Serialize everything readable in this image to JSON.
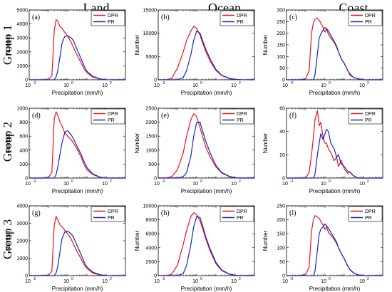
{
  "columns": [
    "Land",
    "Ocean",
    "Coast"
  ],
  "rows": [
    "Group 1",
    "Group 2",
    "Group 3"
  ],
  "colors": {
    "DPR": "#e8141b",
    "PR": "#1a22c8"
  },
  "chart_data": [
    {
      "type": "line",
      "panel": "(a)",
      "xlabel": "Precipitation (mm/h)",
      "ylabel": "Number",
      "xscale": "log",
      "xlim": [
        0.01,
        1000
      ],
      "xticks": [
        "10",
        "10",
        "10"
      ],
      "xtick_exp": [
        "-2",
        "0",
        "2"
      ],
      "ylim": [
        0,
        5000
      ],
      "yticks": [
        "0",
        "1000",
        "2000",
        "3000",
        "4000",
        "5000"
      ],
      "legend": "top-right",
      "x": [
        0.01,
        0.05,
        0.1,
        0.15,
        0.2,
        0.25,
        0.3,
        0.4,
        0.5,
        0.7,
        1,
        1.5,
        2,
        3,
        5,
        7,
        10,
        20,
        50,
        100,
        200,
        1000
      ],
      "series": [
        {
          "name": "DPR",
          "values": [
            0,
            0,
            20,
            300,
            3500,
            4300,
            4200,
            3800,
            3700,
            3400,
            3100,
            2700,
            2300,
            1800,
            1200,
            800,
            500,
            200,
            40,
            10,
            0,
            0
          ]
        },
        {
          "name": "PR",
          "values": [
            0,
            0,
            0,
            0,
            0,
            200,
            600,
            1700,
            2600,
            3100,
            3150,
            3000,
            2800,
            2200,
            1500,
            1000,
            600,
            250,
            50,
            10,
            0,
            0
          ]
        }
      ]
    },
    {
      "type": "line",
      "panel": "(b)",
      "xlabel": "Precipitation (mm/h)",
      "ylabel": "Number",
      "xscale": "log",
      "xlim": [
        0.01,
        1000
      ],
      "xticks": [
        "10",
        "10",
        "10"
      ],
      "xtick_exp": [
        "-2",
        "0",
        "2"
      ],
      "ylim": [
        0,
        15000
      ],
      "yticks": [
        "0",
        "5000",
        "10000",
        "15000"
      ],
      "legend": "top-right",
      "x": [
        0.01,
        0.03,
        0.05,
        0.1,
        0.2,
        0.3,
        0.5,
        0.7,
        1,
        1.5,
        2,
        3,
        5,
        10,
        20,
        50,
        100,
        200,
        1000
      ],
      "series": [
        {
          "name": "DPR",
          "values": [
            0,
            50,
            300,
            2500,
            6000,
            8500,
            10500,
            11500,
            11000,
            9500,
            8000,
            6000,
            4000,
            2000,
            900,
            250,
            60,
            10,
            0
          ]
        },
        {
          "name": "PR",
          "values": [
            0,
            0,
            0,
            0,
            500,
            2000,
            5500,
            8500,
            10500,
            10000,
            8500,
            6500,
            4500,
            2200,
            1000,
            300,
            80,
            10,
            0
          ]
        }
      ]
    },
    {
      "type": "line",
      "panel": "(c)",
      "xlabel": "Precipitation (mm/h)",
      "ylabel": "Number",
      "xscale": "log",
      "xlim": [
        0.01,
        1000
      ],
      "xticks": [
        "10",
        "10",
        "10"
      ],
      "xtick_exp": [
        "-2",
        "0",
        "2"
      ],
      "ylim": [
        0,
        300
      ],
      "yticks": [
        "0",
        "50",
        "100",
        "150",
        "200",
        "250",
        "300"
      ],
      "legend": "top-right",
      "x": [
        0.01,
        0.05,
        0.1,
        0.15,
        0.2,
        0.25,
        0.3,
        0.4,
        0.5,
        0.6,
        0.8,
        1,
        1.2,
        1.5,
        2,
        3,
        4,
        5,
        7,
        10,
        15,
        20,
        30,
        50,
        100,
        1000
      ],
      "series": [
        {
          "name": "DPR",
          "values": [
            0,
            0,
            5,
            40,
            200,
            245,
            260,
            265,
            255,
            245,
            225,
            205,
            220,
            195,
            180,
            160,
            140,
            120,
            90,
            70,
            40,
            20,
            10,
            5,
            0,
            0
          ]
        },
        {
          "name": "PR",
          "values": [
            0,
            0,
            0,
            0,
            0,
            0,
            20,
            110,
            180,
            195,
            215,
            225,
            220,
            210,
            190,
            165,
            145,
            120,
            90,
            70,
            40,
            25,
            10,
            5,
            0,
            0
          ]
        }
      ]
    },
    {
      "type": "line",
      "panel": "(d)",
      "xlabel": "Precipitation (mm/h)",
      "ylabel": "Number",
      "xscale": "log",
      "xlim": [
        0.01,
        1000
      ],
      "xticks": [
        "10",
        "10",
        "10"
      ],
      "xtick_exp": [
        "-2",
        "0",
        "2"
      ],
      "ylim": [
        0,
        1000
      ],
      "yticks": [
        "0",
        "200",
        "400",
        "600",
        "800",
        "1000"
      ],
      "legend": "top-right",
      "x": [
        0.01,
        0.05,
        0.1,
        0.15,
        0.2,
        0.25,
        0.3,
        0.4,
        0.5,
        0.7,
        1,
        1.5,
        2,
        3,
        5,
        7,
        10,
        20,
        50,
        100,
        200,
        1000
      ],
      "series": [
        {
          "name": "DPR",
          "values": [
            0,
            0,
            10,
            80,
            850,
            950,
            900,
            800,
            750,
            650,
            600,
            550,
            500,
            420,
            300,
            200,
            120,
            50,
            10,
            0,
            0,
            0
          ]
        },
        {
          "name": "PR",
          "values": [
            0,
            0,
            0,
            0,
            0,
            50,
            150,
            350,
            500,
            650,
            680,
            620,
            560,
            460,
            340,
            240,
            150,
            60,
            10,
            0,
            0,
            0
          ]
        }
      ]
    },
    {
      "type": "line",
      "panel": "(e)",
      "xlabel": "Precipitation (mm/h)",
      "ylabel": "Number",
      "xscale": "log",
      "xlim": [
        0.01,
        1000
      ],
      "xticks": [
        "10",
        "10",
        "10"
      ],
      "xtick_exp": [
        "-2",
        "0",
        "2"
      ],
      "ylim": [
        0,
        2500
      ],
      "yticks": [
        "0",
        "500",
        "1000",
        "1500",
        "2000",
        "2500"
      ],
      "legend": "top-right",
      "x": [
        0.01,
        0.03,
        0.05,
        0.1,
        0.2,
        0.3,
        0.5,
        0.7,
        1,
        1.5,
        2,
        3,
        5,
        10,
        20,
        50,
        100,
        200,
        1000
      ],
      "series": [
        {
          "name": "DPR",
          "values": [
            0,
            10,
            50,
            300,
            900,
            1500,
            2100,
            2300,
            2200,
            1800,
            1500,
            1100,
            750,
            400,
            180,
            50,
            10,
            0,
            0
          ]
        },
        {
          "name": "PR",
          "values": [
            0,
            0,
            0,
            0,
            50,
            200,
            800,
            1500,
            2000,
            2000,
            1700,
            1300,
            900,
            450,
            200,
            60,
            10,
            0,
            0
          ]
        }
      ]
    },
    {
      "type": "line",
      "panel": "(f)",
      "xlabel": "Precipitation (mm/h)",
      "ylabel": "Number",
      "xscale": "log",
      "xlim": [
        0.01,
        1000
      ],
      "xticks": [
        "10",
        "10",
        "10"
      ],
      "xtick_exp": [
        "-2",
        "0",
        "2"
      ],
      "ylim": [
        0,
        60
      ],
      "yticks": [
        "0",
        "20",
        "40",
        "60"
      ],
      "legend": "top-right",
      "x": [
        0.01,
        0.05,
        0.1,
        0.15,
        0.2,
        0.25,
        0.3,
        0.4,
        0.5,
        0.6,
        0.8,
        1,
        1.2,
        1.5,
        2,
        3,
        4,
        5,
        7,
        10,
        15,
        20,
        30,
        50,
        100,
        1000
      ],
      "series": [
        {
          "name": "DPR",
          "values": [
            0,
            0,
            0,
            5,
            20,
            35,
            50,
            58,
            45,
            48,
            35,
            30,
            30,
            25,
            22,
            15,
            18,
            10,
            15,
            8,
            4,
            5,
            2,
            0,
            0,
            0
          ]
        },
        {
          "name": "PR",
          "values": [
            0,
            0,
            0,
            0,
            0,
            0,
            3,
            20,
            30,
            38,
            33,
            38,
            42,
            40,
            30,
            25,
            18,
            20,
            12,
            10,
            6,
            5,
            2,
            0,
            0,
            0
          ]
        }
      ]
    },
    {
      "type": "line",
      "panel": "(g)",
      "xlabel": "Precipitation (mm/h)",
      "ylabel": "Number",
      "xscale": "log",
      "xlim": [
        0.01,
        1000
      ],
      "xticks": [
        "10",
        "10",
        "10"
      ],
      "xtick_exp": [
        "-2",
        "0",
        "2"
      ],
      "ylim": [
        0,
        4000
      ],
      "yticks": [
        "0",
        "1000",
        "2000",
        "3000",
        "4000"
      ],
      "legend": "top-right",
      "x": [
        0.01,
        0.05,
        0.1,
        0.15,
        0.2,
        0.25,
        0.3,
        0.4,
        0.5,
        0.7,
        1,
        1.5,
        2,
        3,
        5,
        7,
        10,
        20,
        50,
        100,
        200,
        1000
      ],
      "series": [
        {
          "name": "DPR",
          "values": [
            0,
            0,
            20,
            250,
            2900,
            3400,
            3200,
            2900,
            2800,
            2600,
            2400,
            2100,
            1800,
            1400,
            950,
            650,
            400,
            150,
            30,
            5,
            0,
            0
          ]
        },
        {
          "name": "PR",
          "values": [
            0,
            0,
            0,
            0,
            0,
            150,
            500,
            1400,
            2100,
            2500,
            2550,
            2400,
            2200,
            1750,
            1200,
            800,
            500,
            200,
            40,
            5,
            0,
            0
          ]
        }
      ]
    },
    {
      "type": "line",
      "panel": "(h)",
      "xlabel": "Precipitation (mm/h)",
      "ylabel": "Number",
      "xscale": "log",
      "xlim": [
        0.01,
        1000
      ],
      "xticks": [
        "10",
        "10",
        "10"
      ],
      "xtick_exp": [
        "-2",
        "0",
        "2"
      ],
      "ylim": [
        0,
        10000
      ],
      "yticks": [
        "0",
        "2000",
        "4000",
        "6000",
        "8000",
        "10000"
      ],
      "legend": "top-right",
      "x": [
        0.01,
        0.03,
        0.05,
        0.1,
        0.2,
        0.3,
        0.5,
        0.7,
        1,
        1.5,
        2,
        3,
        5,
        10,
        20,
        50,
        100,
        200,
        1000
      ],
      "series": [
        {
          "name": "DPR",
          "values": [
            0,
            30,
            200,
            1500,
            4500,
            6500,
            8500,
            9000,
            8700,
            7800,
            6800,
            5200,
            3500,
            1700,
            700,
            200,
            40,
            5,
            0
          ]
        },
        {
          "name": "PR",
          "values": [
            0,
            0,
            0,
            0,
            300,
            1500,
            4500,
            7000,
            8500,
            8300,
            7200,
            5500,
            3800,
            1900,
            800,
            220,
            50,
            5,
            0
          ]
        }
      ]
    },
    {
      "type": "line",
      "panel": "(i)",
      "xlabel": "Precipitation (mm/h)",
      "ylabel": "Number",
      "xscale": "log",
      "xlim": [
        0.01,
        1000
      ],
      "xticks": [
        "10",
        "10",
        "10"
      ],
      "xtick_exp": [
        "-2",
        "0",
        "2"
      ],
      "ylim": [
        0,
        250
      ],
      "yticks": [
        "0",
        "50",
        "100",
        "150",
        "200",
        "250"
      ],
      "legend": "top-right",
      "x": [
        0.01,
        0.05,
        0.1,
        0.15,
        0.2,
        0.25,
        0.3,
        0.4,
        0.5,
        0.6,
        0.8,
        1,
        1.2,
        1.5,
        2,
        3,
        4,
        5,
        7,
        10,
        15,
        20,
        30,
        50,
        100,
        1000
      ],
      "series": [
        {
          "name": "DPR",
          "values": [
            0,
            0,
            5,
            30,
            160,
            200,
            215,
            210,
            205,
            195,
            180,
            165,
            175,
            155,
            145,
            130,
            115,
            100,
            80,
            60,
            35,
            20,
            10,
            3,
            0,
            0
          ]
        },
        {
          "name": "PR",
          "values": [
            0,
            0,
            0,
            0,
            0,
            0,
            15,
            90,
            150,
            165,
            175,
            185,
            180,
            170,
            155,
            135,
            120,
            100,
            80,
            60,
            35,
            22,
            10,
            3,
            0,
            0
          ]
        }
      ]
    }
  ]
}
